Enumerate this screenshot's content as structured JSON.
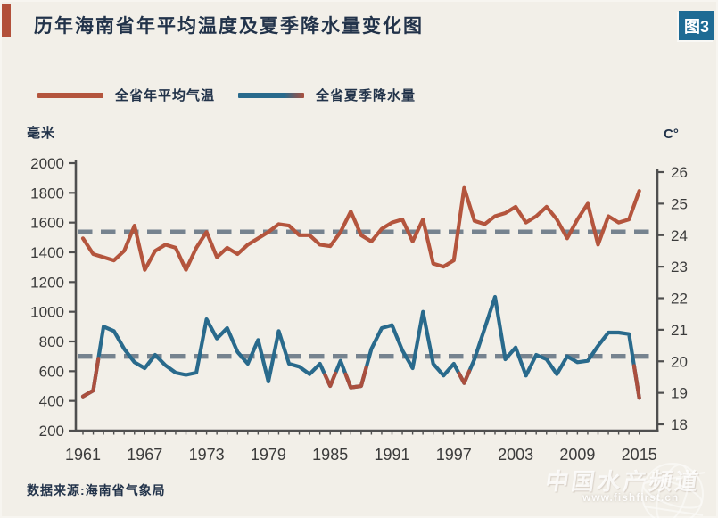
{
  "header": {
    "title": "历年海南省年平均温度及夏季降水量变化图",
    "figure_badge": "图3"
  },
  "legend": {
    "items": [
      {
        "label": "全省年平均气温",
        "color": "#b4553d"
      },
      {
        "label": "全省夏季降水量",
        "color": "#296a8c",
        "tip_color": "#aa4f3e"
      }
    ]
  },
  "source": "数据来源:海南省气象局",
  "watermark": {
    "name": "中国水产频道",
    "url": "www.fishfirst.cn",
    "icon": "globe-icon"
  },
  "colors": {
    "background": "#f2efe8",
    "accent_bar": "#b2503a",
    "badge_bg": "#1e6b94",
    "title_text": "#22334a"
  },
  "chart_data": {
    "type": "line",
    "title": "历年海南省年平均温度及夏季降水量变化图",
    "grid": false,
    "legend_position": "top",
    "spine_color": "#4f4f4f",
    "tick_text_color": "#3b3b3b",
    "mean_line_color": "#76838f",
    "x": [
      1961,
      1962,
      1963,
      1964,
      1965,
      1966,
      1967,
      1968,
      1969,
      1970,
      1971,
      1972,
      1973,
      1974,
      1975,
      1976,
      1977,
      1978,
      1979,
      1980,
      1981,
      1982,
      1983,
      1984,
      1985,
      1986,
      1987,
      1988,
      1989,
      1990,
      1991,
      1992,
      1993,
      1994,
      1995,
      1996,
      1997,
      1998,
      1999,
      2000,
      2001,
      2002,
      2003,
      2004,
      2005,
      2006,
      2007,
      2008,
      2009,
      2010,
      2011,
      2012,
      2013,
      2014,
      2015
    ],
    "x_tick_labels": [
      "1961",
      "1967",
      "1973",
      "1979",
      "1985",
      "1991",
      "1997",
      "2003",
      "2009",
      "2015"
    ],
    "left_axis": {
      "label": "毫米",
      "min": 200,
      "max": 2000,
      "ticks": [
        2000,
        1800,
        1600,
        1400,
        1200,
        1000,
        800,
        600,
        400,
        200
      ]
    },
    "right_axis": {
      "label": "C°",
      "min": 18,
      "max": 26,
      "ticks": [
        26,
        25,
        24,
        23,
        22,
        21,
        20,
        19,
        18
      ]
    },
    "series": [
      {
        "name": "全省年平均气温",
        "axis": "right",
        "unit": "°C",
        "color": "#b4553d",
        "mean": 24.1,
        "values": [
          23.9,
          23.4,
          23.3,
          23.2,
          23.5,
          24.3,
          22.9,
          23.5,
          23.7,
          23.6,
          22.9,
          23.6,
          24.1,
          23.3,
          23.6,
          23.4,
          23.7,
          23.9,
          24.1,
          24.35,
          24.3,
          24.0,
          24.0,
          23.7,
          23.65,
          24.1,
          24.75,
          24.0,
          23.8,
          24.2,
          24.4,
          24.5,
          23.8,
          24.5,
          23.1,
          23.0,
          23.2,
          25.5,
          24.45,
          24.35,
          24.6,
          24.7,
          24.9,
          24.4,
          24.6,
          24.9,
          24.5,
          23.9,
          24.5,
          25.0,
          23.7,
          24.6,
          24.4,
          24.5,
          25.4
        ]
      },
      {
        "name": "全省夏季降水量",
        "axis": "left",
        "unit": "mm",
        "color": "#296a8c",
        "low_color": "#aa4f3e",
        "low_threshold": 525,
        "mean": 700,
        "values": [
          430,
          470,
          900,
          870,
          750,
          660,
          620,
          710,
          640,
          590,
          575,
          590,
          950,
          820,
          890,
          730,
          650,
          810,
          530,
          870,
          650,
          630,
          580,
          650,
          500,
          670,
          490,
          500,
          750,
          890,
          910,
          740,
          620,
          1000,
          650,
          570,
          650,
          520,
          680,
          890,
          1100,
          680,
          760,
          570,
          710,
          680,
          580,
          700,
          660,
          670,
          770,
          860,
          860,
          850,
          420
        ]
      }
    ]
  }
}
